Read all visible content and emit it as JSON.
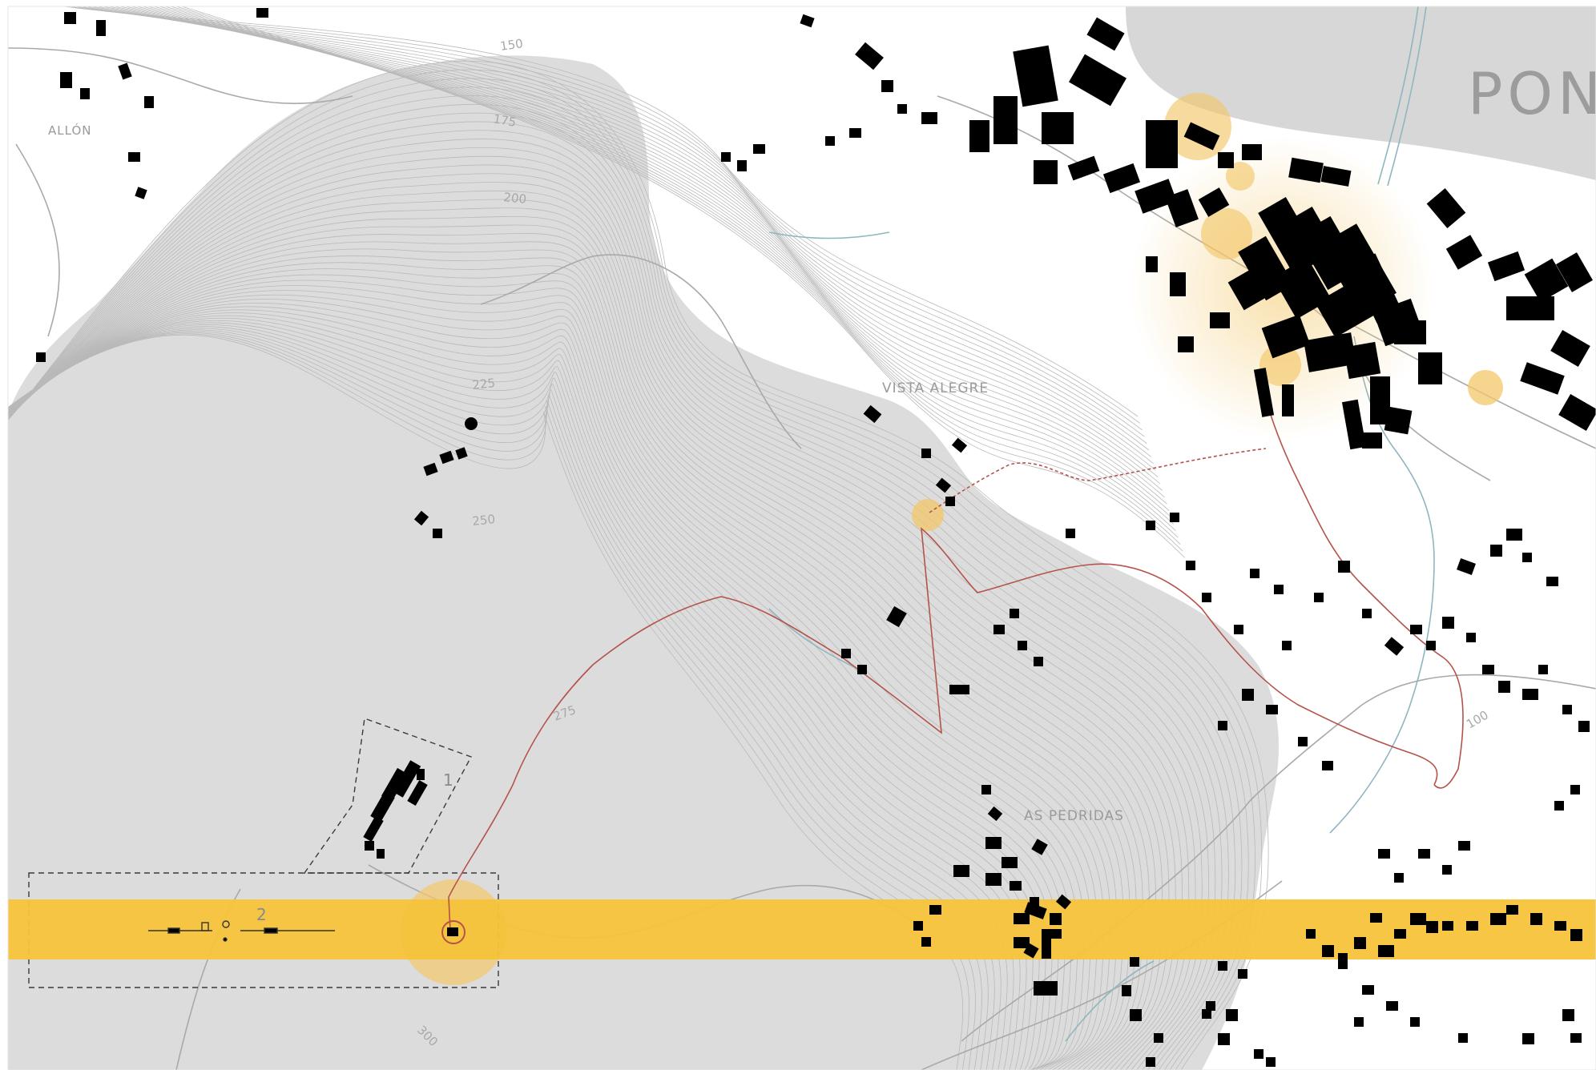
{
  "map": {
    "colors": {
      "background": "#ffffff",
      "hill": "#dcdcdc",
      "water": "#d7d7d7",
      "building": "#000000",
      "contour": "#b5b5b5",
      "band": "#f6c33a",
      "highlight": "#f3c86a",
      "route": "#b4534b",
      "stream": "#8fb6c0"
    },
    "places": {
      "town": "PONT",
      "vista_alegre": "VISTA ALEGRE",
      "as_pedridas": "AS PEDRIDAS",
      "allon": "ALLÓN"
    },
    "contour_labels": {
      "c150": "150",
      "c175": "175",
      "c200": "200",
      "c225": "225",
      "c250": "250",
      "c275": "275",
      "c300": "300",
      "c100": "100"
    },
    "zones": {
      "zone1": "1",
      "zone2": "2"
    }
  }
}
